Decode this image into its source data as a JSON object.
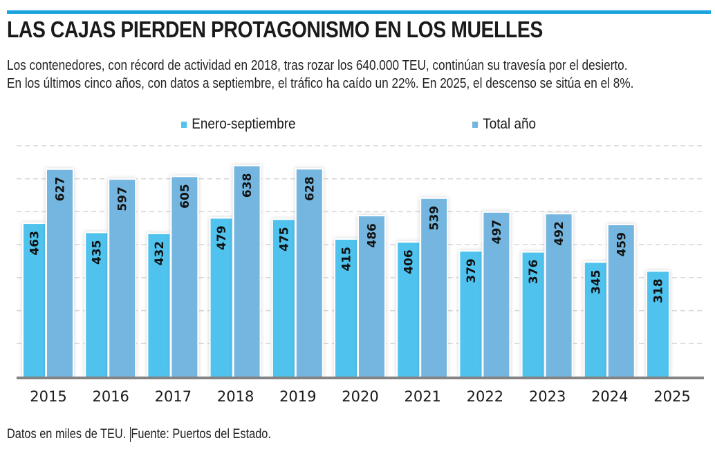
{
  "header": {
    "title": "LAS CAJAS PIERDEN PROTAGONISMO EN LOS MUELLES",
    "subtitle_line1": "Los contenedores, con récord de actividad en 2018, tras rozar los 640.000 TEU, continúan su travesía por el desierto.",
    "subtitle_line2": "En los últimos cinco años, con datos a septiembre, el tráfico ha caído un 22%. En 2025, el descenso se sitúa en el 8%.",
    "accent_color": "#1aa3dc"
  },
  "footer": {
    "note": "Datos en miles de TEU.",
    "source": "Fuente: Puertos del Estado."
  },
  "chart_data": {
    "type": "bar",
    "title": "LAS CAJAS PIERDEN PROTAGONISMO EN LOS MUELLES",
    "xlabel": "",
    "ylabel": "",
    "unit": "miles de TEU",
    "categories": [
      "2015",
      "2016",
      "2017",
      "2018",
      "2019",
      "2020",
      "2021",
      "2022",
      "2023",
      "2024",
      "2025"
    ],
    "series": [
      {
        "name": "Enero-septiembre",
        "color": "#4fc3ee",
        "values": [
          463,
          435,
          432,
          479,
          475,
          415,
          406,
          379,
          376,
          345,
          318
        ]
      },
      {
        "name": "Total año",
        "color": "#74b6df",
        "values": [
          627,
          597,
          605,
          638,
          628,
          486,
          539,
          497,
          492,
          459,
          null
        ]
      }
    ],
    "ylim": [
      0,
      700
    ],
    "grid": true,
    "grid_step": 100,
    "y_tick_labels_shown": false,
    "legend_position": "top",
    "data_labels": "rotated inside bars"
  }
}
